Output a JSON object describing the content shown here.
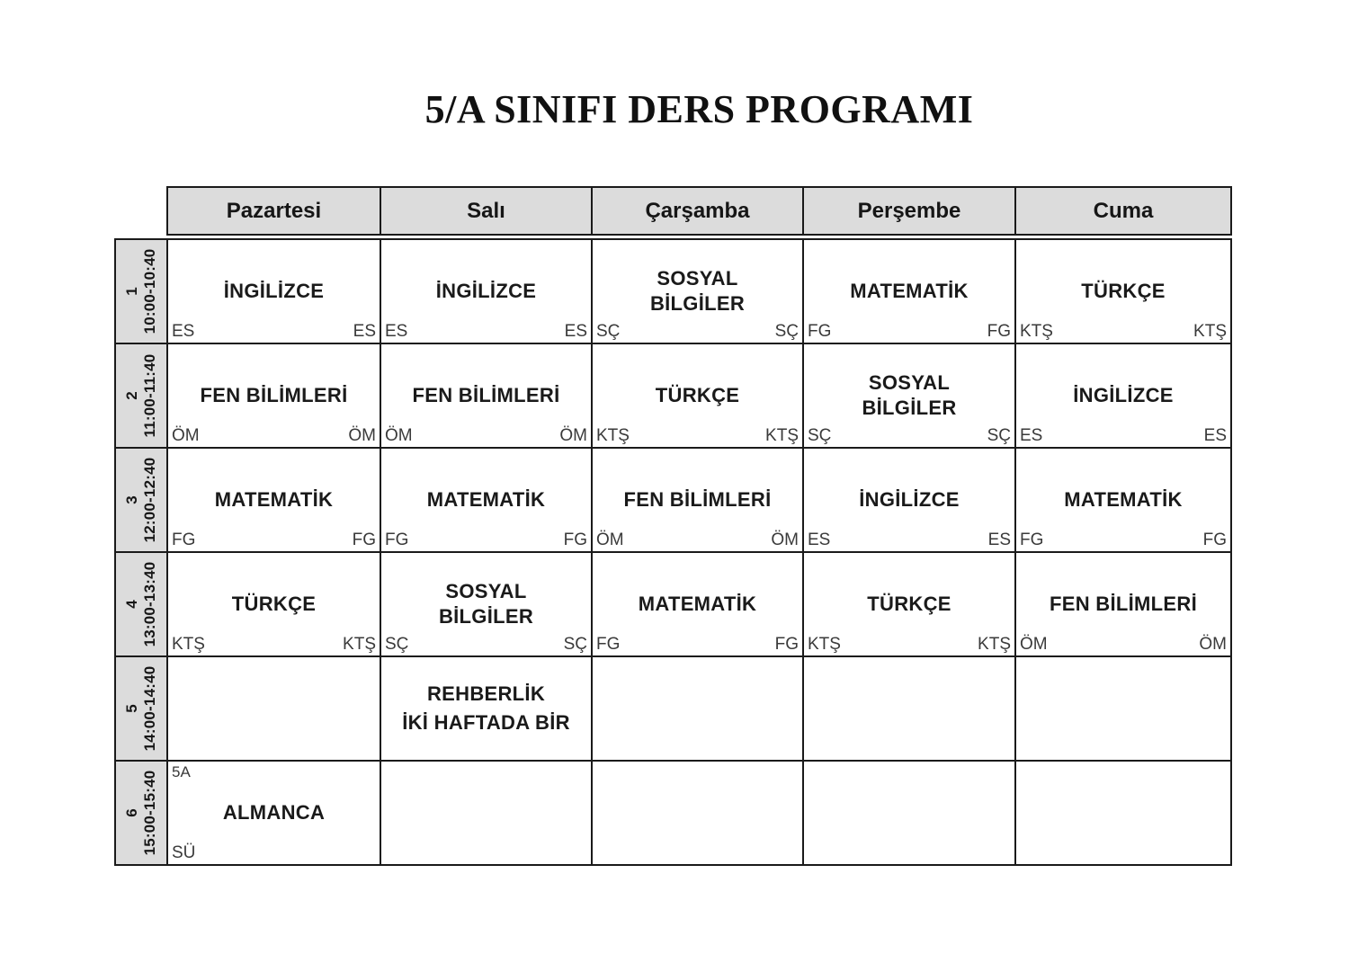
{
  "title": "5/A SINIFI DERS PROGRAMI",
  "schedule": {
    "days": [
      {
        "label": "Pazartesi",
        "slug": "pazartesi"
      },
      {
        "label": "Salı",
        "slug": "sali"
      },
      {
        "label": "Çarşamba",
        "slug": "carsamba"
      },
      {
        "label": "Perşembe",
        "slug": "persembe"
      },
      {
        "label": "Cuma",
        "slug": "cuma"
      }
    ],
    "rows": [
      {
        "num": "1",
        "time": "10:00-10:40",
        "cells": [
          {
            "subject": "İNGİLİZCE",
            "left": "ES",
            "right": "ES"
          },
          {
            "subject": "İNGİLİZCE",
            "left": "ES",
            "right": "ES"
          },
          {
            "subject": "SOSYAL\nBİLGİLER",
            "left": "SÇ",
            "right": "SÇ"
          },
          {
            "subject": "MATEMATİK",
            "left": "FG",
            "right": "FG"
          },
          {
            "subject": "TÜRKÇE",
            "left": "KTŞ",
            "right": "KTŞ"
          }
        ]
      },
      {
        "num": "2",
        "time": "11:00-11:40",
        "cells": [
          {
            "subject": "FEN BİLİMLERİ",
            "left": "ÖM",
            "right": "ÖM"
          },
          {
            "subject": "FEN BİLİMLERİ",
            "left": "ÖM",
            "right": "ÖM"
          },
          {
            "subject": "TÜRKÇE",
            "left": "KTŞ",
            "right": "KTŞ"
          },
          {
            "subject": "SOSYAL\nBİLGİLER",
            "left": "SÇ",
            "right": "SÇ"
          },
          {
            "subject": "İNGİLİZCE",
            "left": "ES",
            "right": "ES"
          }
        ]
      },
      {
        "num": "3",
        "time": "12:00-12:40",
        "cells": [
          {
            "subject": "MATEMATİK",
            "left": "FG",
            "right": "FG"
          },
          {
            "subject": "MATEMATİK",
            "left": "FG",
            "right": "FG"
          },
          {
            "subject": "FEN BİLİMLERİ",
            "left": "ÖM",
            "right": "ÖM"
          },
          {
            "subject": "İNGİLİZCE",
            "left": "ES",
            "right": "ES"
          },
          {
            "subject": "MATEMATİK",
            "left": "FG",
            "right": "FG"
          }
        ]
      },
      {
        "num": "4",
        "time": "13:00-13:40",
        "cells": [
          {
            "subject": "TÜRKÇE",
            "left": "KTŞ",
            "right": "KTŞ"
          },
          {
            "subject": "SOSYAL\nBİLGİLER",
            "left": "SÇ",
            "right": "SÇ"
          },
          {
            "subject": "MATEMATİK",
            "left": "FG",
            "right": "FG"
          },
          {
            "subject": "TÜRKÇE",
            "left": "KTŞ",
            "right": "KTŞ"
          },
          {
            "subject": "FEN BİLİMLERİ",
            "left": "ÖM",
            "right": "ÖM"
          }
        ]
      },
      {
        "num": "5",
        "time": "14:00-14:40",
        "cells": [
          {},
          {
            "subject": "REHBERLİK\nİKİ HAFTADA BİR",
            "note": true
          },
          {},
          {},
          {}
        ]
      },
      {
        "num": "6",
        "time": "15:00-15:40",
        "cells": [
          {
            "subject": "ALMANCA",
            "top_left": "5A",
            "left": "SÜ"
          },
          {},
          {},
          {},
          {}
        ]
      }
    ]
  },
  "colors": {
    "header_fill": "#dcdcdc",
    "border": "#1a1a1a",
    "subject_text": "#1a1a1a",
    "initials_text": "#3a3a3a"
  }
}
